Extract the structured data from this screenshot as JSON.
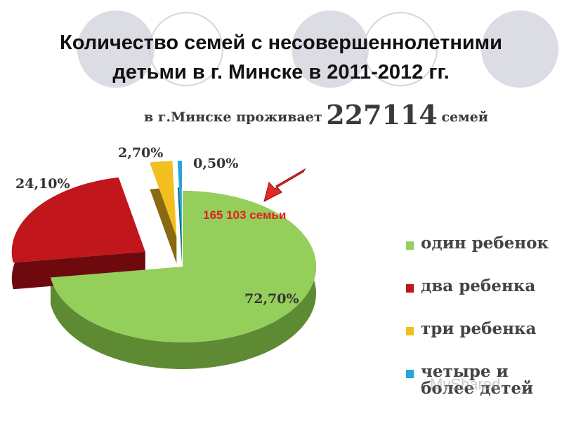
{
  "slide": {
    "title_line1": "Количество семей с несовершеннолетними",
    "title_line2": "детьми в г. Минске в 2011-2012 гг."
  },
  "subtitle": {
    "prefix": "в г.Минске проживает",
    "number": "227114",
    "suffix": "семей"
  },
  "callout": {
    "text": "165 103 семьи",
    "color": "#e02020"
  },
  "watermark": "MyShared",
  "chart_data": {
    "type": "pie",
    "style": "3d-exploded",
    "categories": [
      "один ребенок",
      "два ребенка",
      "три ребенка",
      "четыре и более детей"
    ],
    "values": [
      72.7,
      24.1,
      2.7,
      0.5
    ],
    "labels": [
      "72,70%",
      "24,10%",
      "2,70%",
      "0,50%"
    ],
    "colors": [
      "#94cf5c",
      "#c0161c",
      "#f3bf1f",
      "#23a6dc"
    ],
    "side_colors": [
      "#5e8a33",
      "#6e0a0e",
      "#8a6a10",
      "#136a8c"
    ],
    "legend_position": "right"
  }
}
